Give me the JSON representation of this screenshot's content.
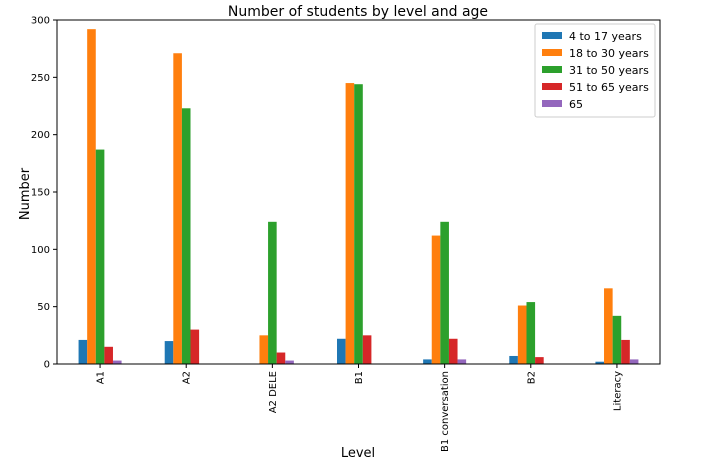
{
  "chart_data": {
    "type": "bar",
    "title": "Number of students by level and age",
    "xlabel": "Level",
    "ylabel": "Number",
    "categories": [
      "A1",
      "A2",
      "A2 DELE",
      "B1",
      "B1 conversation",
      "B2",
      "Literacy"
    ],
    "ylim": [
      0,
      300
    ],
    "yticks": [
      0,
      50,
      100,
      150,
      200,
      250,
      300
    ],
    "grid": false,
    "legend_position": "top-right",
    "series": [
      {
        "name": "4 to 17 years",
        "color": "#1f77b4",
        "values": [
          21,
          20,
          0,
          22,
          4,
          7,
          2
        ]
      },
      {
        "name": "18 to 30 years",
        "color": "#ff7f0e",
        "values": [
          292,
          271,
          25,
          245,
          112,
          51,
          66
        ]
      },
      {
        "name": "31 to 50 years",
        "color": "#2ca02c",
        "values": [
          187,
          223,
          124,
          244,
          124,
          54,
          42
        ]
      },
      {
        "name": "51 to 65 years",
        "color": "#d62728",
        "values": [
          15,
          30,
          10,
          25,
          22,
          6,
          21
        ]
      },
      {
        "name": "65",
        "color": "#9467bd",
        "values": [
          3,
          0,
          3,
          0,
          4,
          0,
          4
        ]
      }
    ]
  }
}
